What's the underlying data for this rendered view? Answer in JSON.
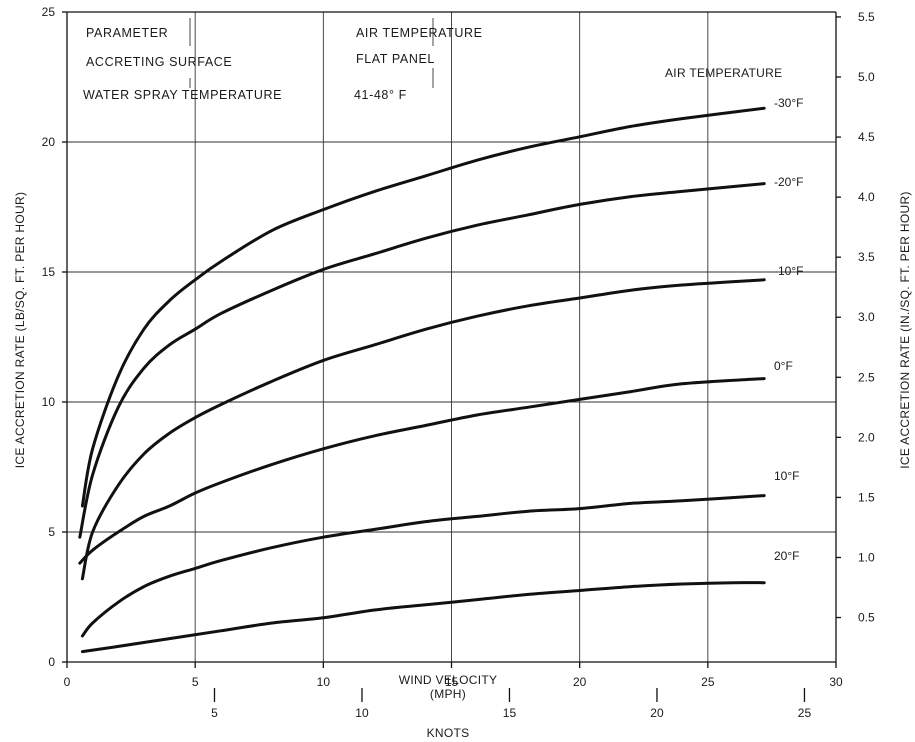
{
  "chart_data": {
    "type": "line",
    "annotations": [
      {
        "label": "PARAMETER",
        "value": "AIR TEMPERATURE"
      },
      {
        "label": "ACCRETING SURFACE",
        "value": "FLAT PANEL"
      },
      {
        "label": "WATER SPRAY TEMPERATURE",
        "value": "41-48° F"
      }
    ],
    "legend_title": "AIR TEMPERATURE",
    "xlabel": "WIND VELOCITY\n(MPH)",
    "xlabel_secondary": "KNOTS",
    "ylabel": "ICE ACCRETION RATE (LB/SQ. FT. PER HOUR)",
    "ylabel_right": "ICE ACCRETION RATE (IN./SQ. FT. PER HOUR)",
    "xlim": [
      0,
      30
    ],
    "ylim": [
      0,
      25
    ],
    "xticks": [
      "0",
      "5",
      "10",
      "15",
      "20",
      "25",
      "30"
    ],
    "yticks": [
      "0",
      "5",
      "10",
      "15",
      "20",
      "25"
    ],
    "knots_ticks": [
      "5",
      "10",
      "15",
      "20",
      "25"
    ],
    "y_right_ticks": [
      "0.5",
      "1.0",
      "1.5",
      "2.0",
      "2.5",
      "3.0",
      "3.5",
      "4.0",
      "4.5",
      "5.0",
      "5.5"
    ],
    "grid": true,
    "series": [
      {
        "name": "-30°F",
        "x": [
          0.6,
          1,
          2,
          3,
          4,
          5,
          6,
          8,
          10,
          12,
          14,
          16,
          18,
          20,
          22,
          24,
          27.2
        ],
        "y": [
          6.0,
          8.2,
          11.0,
          12.8,
          13.9,
          14.7,
          15.4,
          16.6,
          17.4,
          18.1,
          18.7,
          19.3,
          19.8,
          20.2,
          20.6,
          20.9,
          21.3
        ]
      },
      {
        "name": "-20°F",
        "x": [
          0.5,
          1,
          2,
          3,
          4,
          5,
          6,
          8,
          10,
          12,
          14,
          16,
          18,
          20,
          22,
          24,
          27.2
        ],
        "y": [
          4.8,
          7.2,
          9.8,
          11.3,
          12.2,
          12.8,
          13.4,
          14.3,
          15.1,
          15.7,
          16.3,
          16.8,
          17.2,
          17.6,
          17.9,
          18.1,
          18.4
        ]
      },
      {
        "name": "-10°F",
        "x": [
          0.6,
          1,
          2,
          3,
          4,
          5,
          6,
          8,
          10,
          12,
          14,
          16,
          18,
          20,
          22,
          24,
          27.2
        ],
        "y": [
          3.2,
          5.0,
          6.8,
          8.0,
          8.8,
          9.4,
          9.9,
          10.8,
          11.6,
          12.2,
          12.8,
          13.3,
          13.7,
          14.0,
          14.3,
          14.5,
          14.7
        ]
      },
      {
        "name": "0°F",
        "x": [
          0.5,
          1,
          2,
          3,
          4,
          5,
          6,
          8,
          10,
          12,
          14,
          16,
          18,
          20,
          22,
          24,
          27.2
        ],
        "y": [
          3.8,
          4.3,
          5.0,
          5.6,
          6.0,
          6.5,
          6.9,
          7.6,
          8.2,
          8.7,
          9.1,
          9.5,
          9.8,
          10.1,
          10.4,
          10.7,
          10.9
        ]
      },
      {
        "name": "10°F",
        "x": [
          0.6,
          1,
          2,
          3,
          4,
          5,
          6,
          8,
          10,
          12,
          14,
          16,
          18,
          20,
          22,
          24,
          27.2
        ],
        "y": [
          1.0,
          1.5,
          2.3,
          2.9,
          3.3,
          3.6,
          3.9,
          4.4,
          4.8,
          5.1,
          5.4,
          5.6,
          5.8,
          5.9,
          6.1,
          6.2,
          6.4
        ]
      },
      {
        "name": "20°F",
        "x": [
          0.6,
          2,
          4,
          6,
          8,
          10,
          12,
          14,
          16,
          18,
          20,
          22,
          24,
          26,
          27.2
        ],
        "y": [
          0.4,
          0.6,
          0.9,
          1.2,
          1.5,
          1.7,
          2.0,
          2.2,
          2.4,
          2.6,
          2.75,
          2.9,
          3.0,
          3.05,
          3.05
        ]
      }
    ]
  }
}
